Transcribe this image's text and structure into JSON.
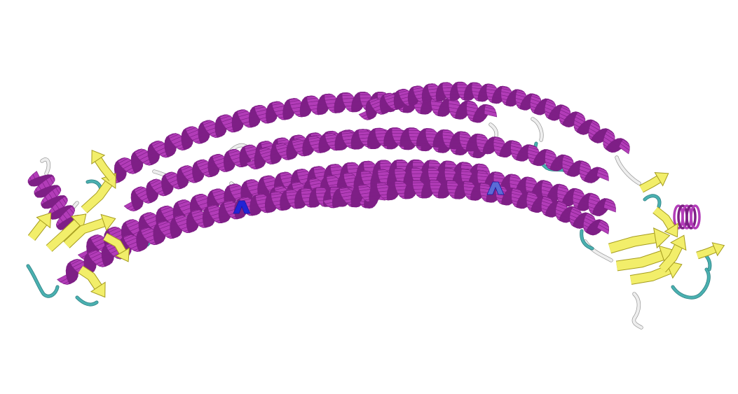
{
  "scene": {
    "background": "#ffffff",
    "colors": {
      "helix": "#b23cb8",
      "helix_dark": "#7e1f86",
      "helix_light": "#c867cc",
      "sheet": "#f2ee6a",
      "sheet_dark": "#a59c1e",
      "coil": "#eeeeee",
      "coil_edge": "#9a9a9a",
      "turn": "#4ab0b0",
      "turn_dark": "#2a7d80",
      "bridge": "#2323d6",
      "bridge_light": "#5b6bd6"
    },
    "icons": {
      "helix": "alpha-helix-ribbon-icon",
      "sheet": "beta-sheet-arrow-icon",
      "coil": "random-coil-tube-icon",
      "turn": "turn-tube-icon",
      "bridge": "bridge-marker-icon"
    }
  }
}
